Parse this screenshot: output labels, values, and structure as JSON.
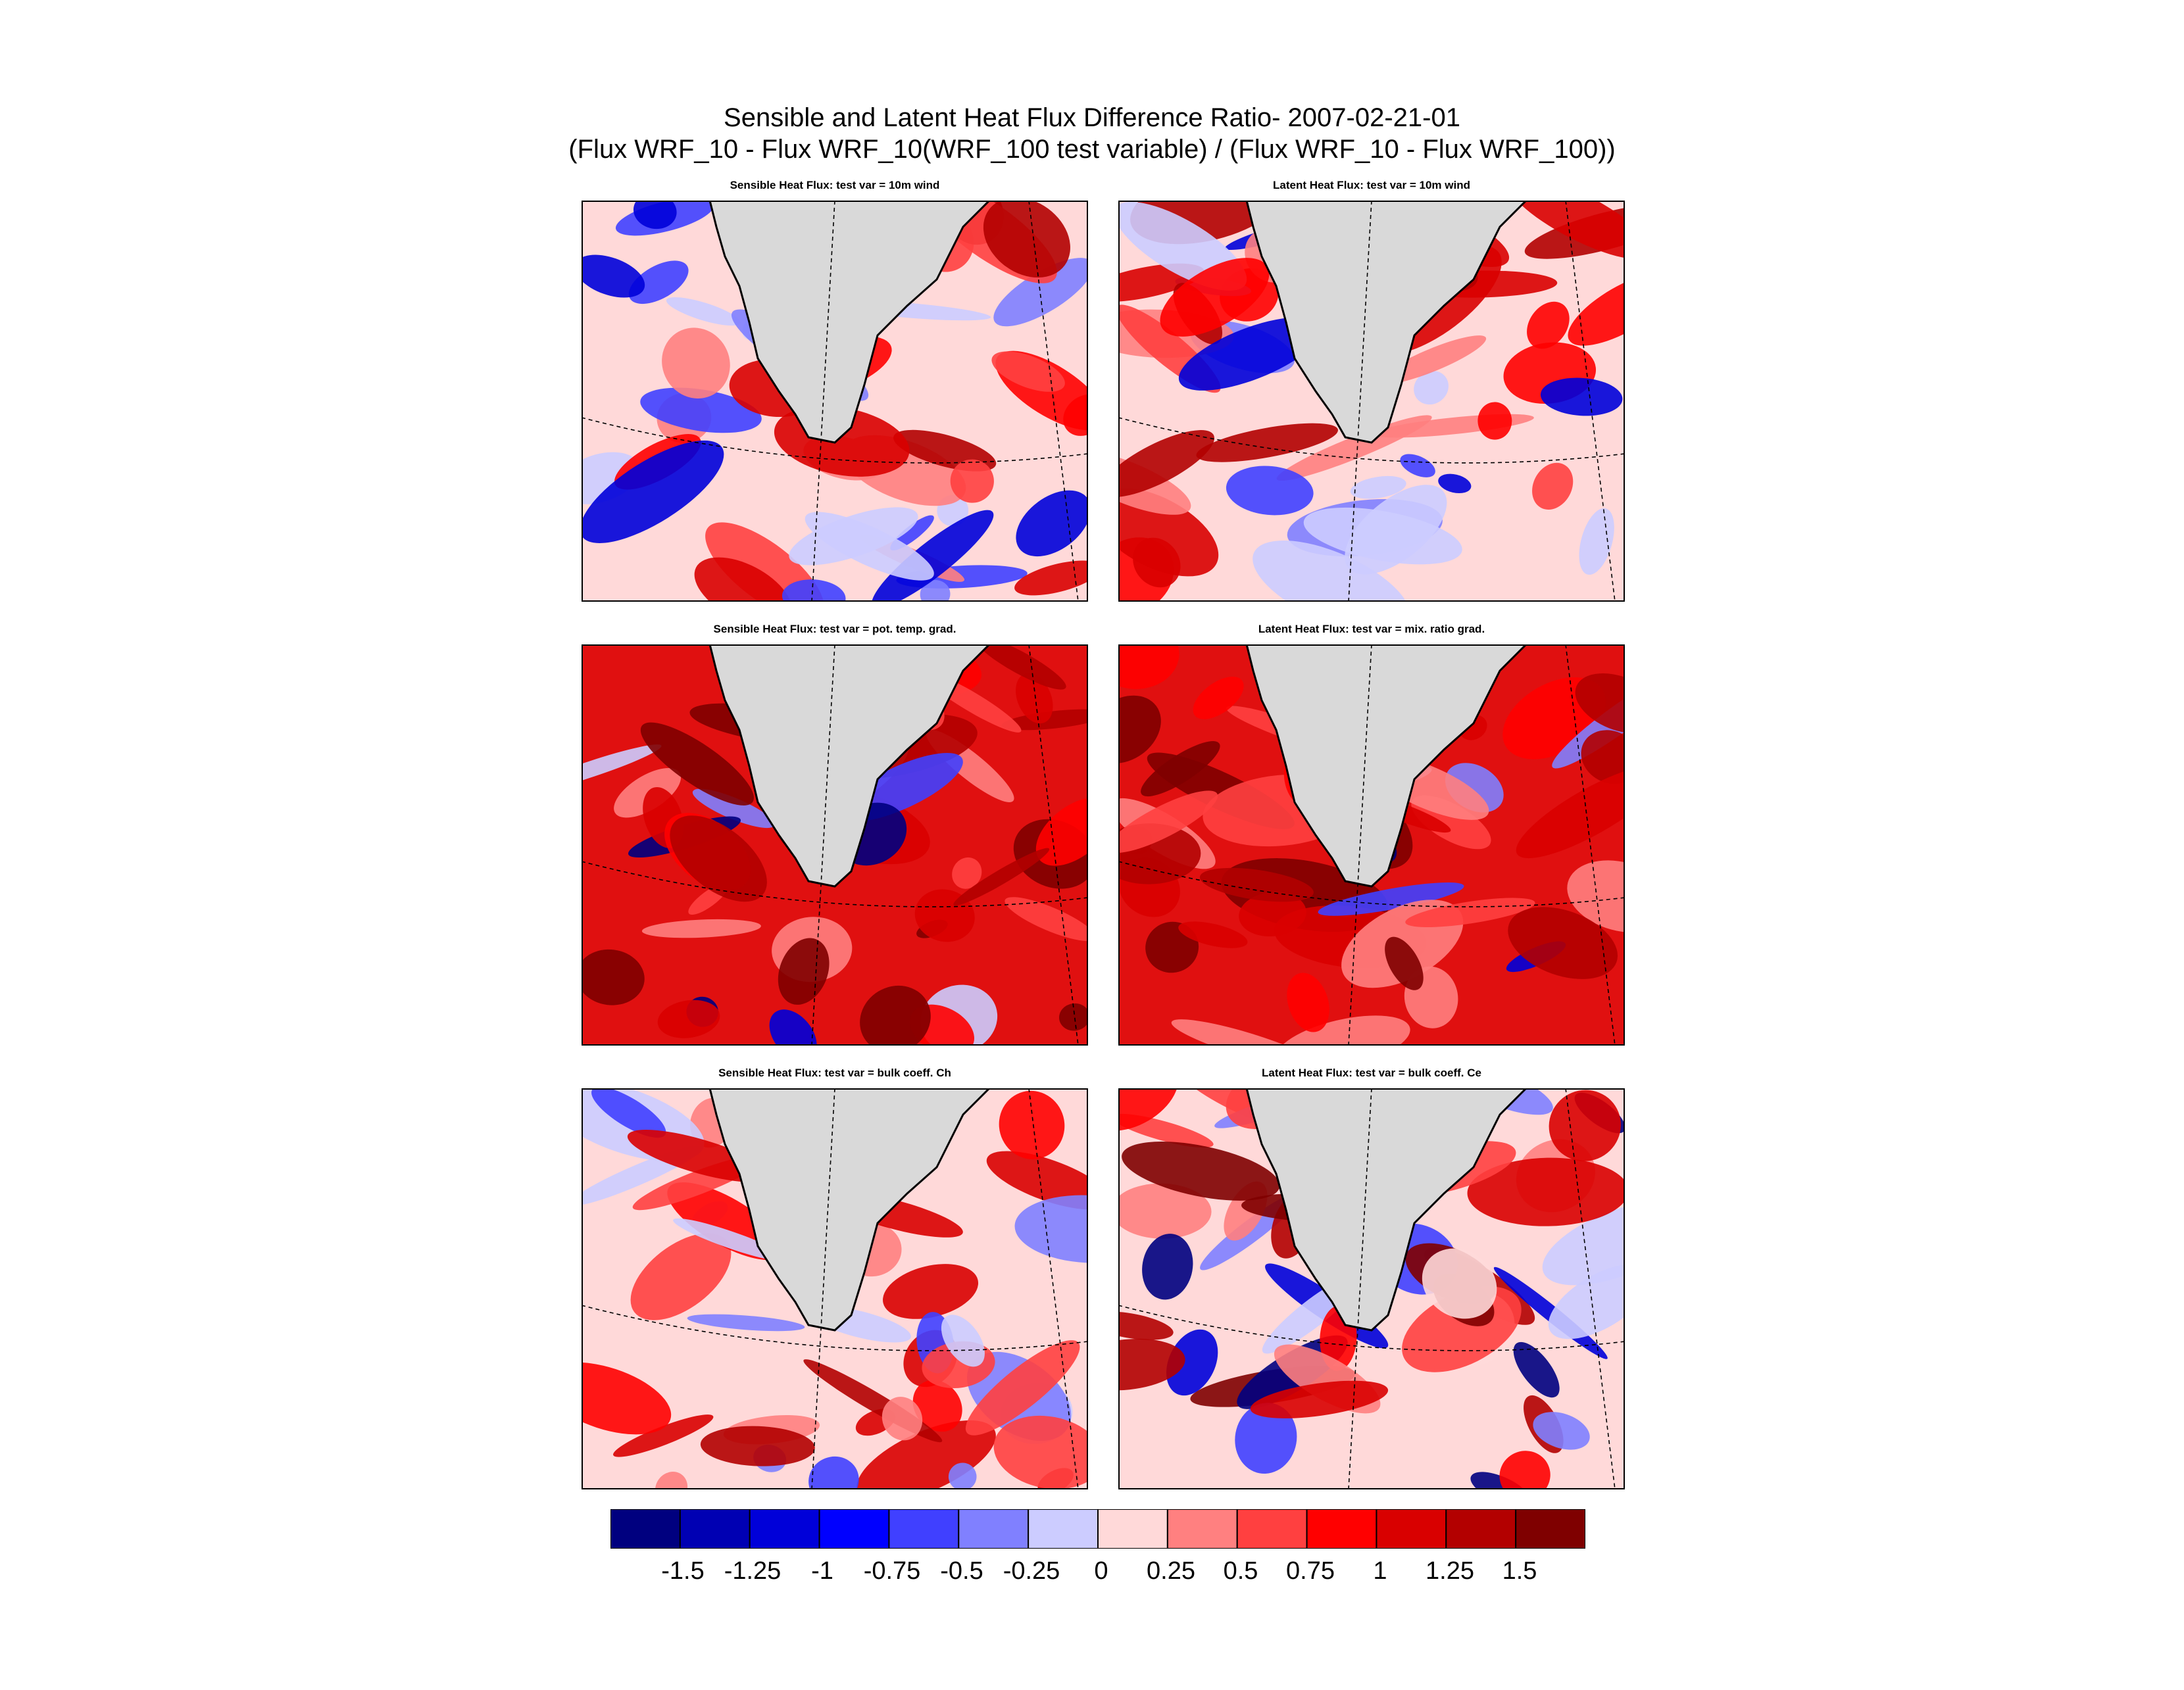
{
  "title": {
    "line1": "Sensible and Latent Heat Flux Difference Ratio- 2007-02-21-01",
    "line2": "(Flux WRF_10 - Flux WRF_10(WRF_100 test variable) / (Flux WRF_10 - Flux WRF_100))"
  },
  "panels": [
    {
      "title": "Sensible Heat Flux: test var = 10m wind",
      "dominant_level": 1,
      "seed": 11
    },
    {
      "title": "Latent Heat Flux: test var = 10m wind",
      "dominant_level": 1,
      "seed": 23
    },
    {
      "title": "Sensible Heat Flux: test var = pot. temp. grad.",
      "dominant_level": 3,
      "seed": 37
    },
    {
      "title": "Latent Heat Flux: test var = mix. ratio grad.",
      "dominant_level": 3,
      "seed": 41
    },
    {
      "title": "Sensible Heat Flux: test var = bulk coeff. Ch",
      "dominant_level": 1,
      "seed": 53
    },
    {
      "title": "Latent Heat Flux: test var = bulk coeff. Ce",
      "dominant_level": 2,
      "seed": 67
    }
  ],
  "colorbar": {
    "colors": [
      "#00007f",
      "#0000b3",
      "#0000d9",
      "#0000ff",
      "#4040ff",
      "#8080ff",
      "#ccccff",
      "#ffd9d9",
      "#ff8080",
      "#ff4040",
      "#ff0000",
      "#d90000",
      "#b30000",
      "#7f0000"
    ],
    "labels": [
      "-1.5",
      "-1.25",
      "-1",
      "-0.75",
      "-0.5",
      "-0.25",
      "0",
      "0.25",
      "0.5",
      "0.75",
      "1",
      "1.25",
      "1.5"
    ]
  },
  "map_style": {
    "land_color": "#d9d9d9",
    "coast_color": "#000000",
    "grid_line_style": "dashed"
  }
}
